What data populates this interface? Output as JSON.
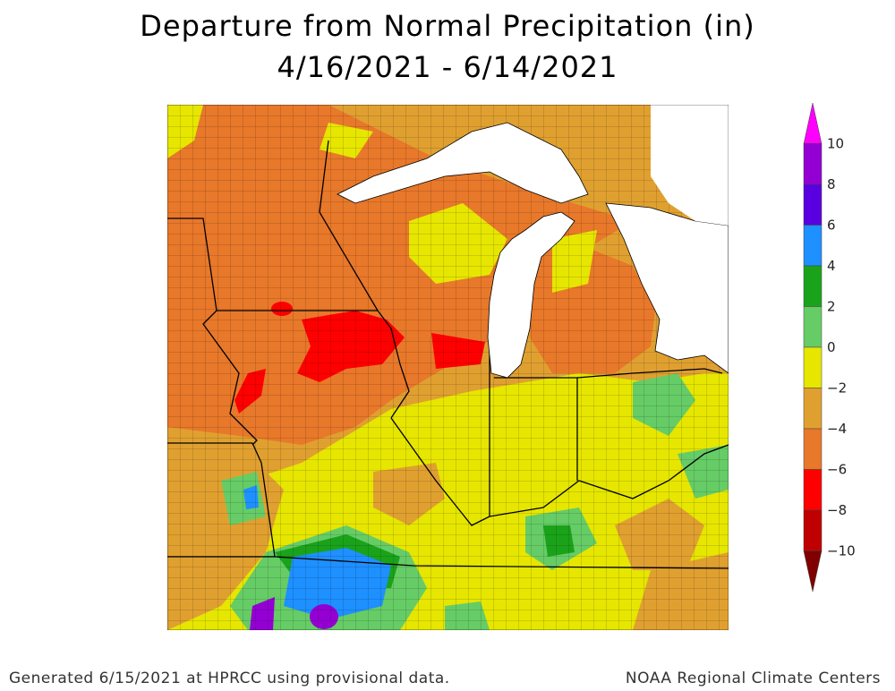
{
  "title": {
    "line1": "Departure from Normal Precipitation (in)",
    "line2": "4/16/2021 - 6/14/2021"
  },
  "legend": {
    "units": "in",
    "ticks": [
      "10",
      "8",
      "6",
      "4",
      "2",
      "0",
      "−2",
      "−4",
      "−6",
      "−8",
      "−10"
    ],
    "bins": [
      {
        "from": 10,
        "to": 12,
        "color": "#ff00ff"
      },
      {
        "from": 8,
        "to": 10,
        "color": "#9400d3"
      },
      {
        "from": 6,
        "to": 8,
        "color": "#5a00e0"
      },
      {
        "from": 4,
        "to": 6,
        "color": "#1e90ff"
      },
      {
        "from": 2,
        "to": 4,
        "color": "#1aa31a"
      },
      {
        "from": 0,
        "to": 2,
        "color": "#66cc66"
      },
      {
        "from": -2,
        "to": 0,
        "color": "#e6e600"
      },
      {
        "from": -4,
        "to": -2,
        "color": "#e0a030"
      },
      {
        "from": -6,
        "to": -4,
        "color": "#e8782a"
      },
      {
        "from": -8,
        "to": -6,
        "color": "#ff0000"
      },
      {
        "from": -10,
        "to": -8,
        "color": "#c00000"
      },
      {
        "from": -12,
        "to": -10,
        "color": "#800000"
      }
    ]
  },
  "map": {
    "region": "Midwest United States",
    "lakes": [
      "Lake Superior",
      "Lake Michigan",
      "Lake Huron",
      "Lake Erie"
    ]
  },
  "footer": {
    "left": "Generated 6/15/2021 at HPRCC using provisional data.",
    "right": "NOAA Regional Climate Centers"
  }
}
